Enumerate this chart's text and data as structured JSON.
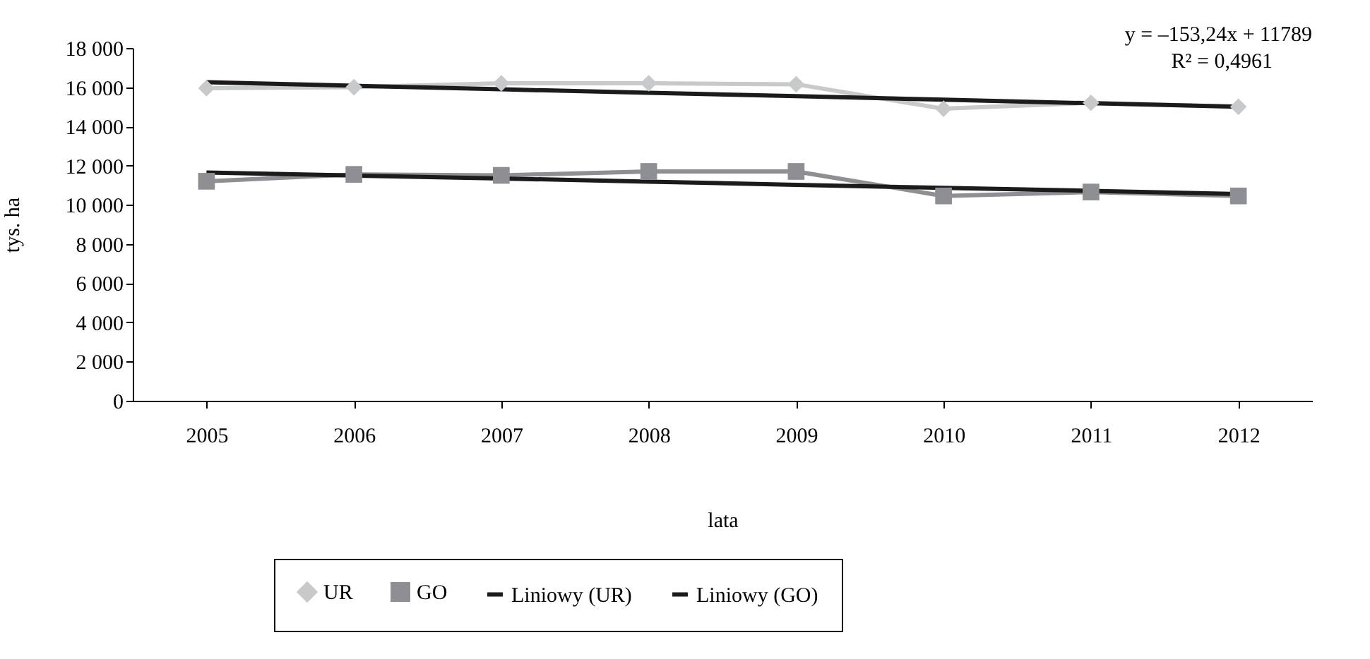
{
  "chart_data": {
    "type": "line",
    "xlabel": "lata",
    "ylabel": "tys. ha",
    "categories": [
      "2005",
      "2006",
      "2007",
      "2008",
      "2009",
      "2010",
      "2011",
      "2012"
    ],
    "ylim": [
      0,
      18000
    ],
    "yticks": [
      {
        "value": 0,
        "label": "0"
      },
      {
        "value": 2000,
        "label": "2 000"
      },
      {
        "value": 4000,
        "label": "4 000"
      },
      {
        "value": 6000,
        "label": "6 000"
      },
      {
        "value": 8000,
        "label": "8 000"
      },
      {
        "value": 10000,
        "label": "10 000"
      },
      {
        "value": 12000,
        "label": "12 000"
      },
      {
        "value": 14000,
        "label": "14 000"
      },
      {
        "value": 16000,
        "label": "16 000"
      },
      {
        "value": 18000,
        "label": "18 000"
      }
    ],
    "grid": false,
    "legend": "bottom",
    "series": [
      {
        "name": "UR",
        "color": "#c8c9cb",
        "marker": "diamond",
        "values": [
          15950,
          16000,
          16200,
          16200,
          16150,
          14900,
          15200,
          15000
        ]
      },
      {
        "name": "GO",
        "color": "#8e8f93",
        "marker": "square",
        "values": [
          11200,
          11550,
          11500,
          11700,
          11700,
          10450,
          10650,
          10450
        ]
      },
      {
        "name": "Liniowy (UR)",
        "color": "#1d1a1b",
        "values": [
          16250,
          16070,
          15890,
          15710,
          15540,
          15360,
          15180,
          15000
        ]
      },
      {
        "name": "Liniowy (GO)",
        "color": "#1d1a1b",
        "values": [
          11650,
          11490,
          11340,
          11180,
          11020,
          10860,
          10710,
          10550
        ]
      }
    ],
    "annotations": [
      "y = –153,24x + 11789",
      "R² = 0,4961"
    ]
  }
}
